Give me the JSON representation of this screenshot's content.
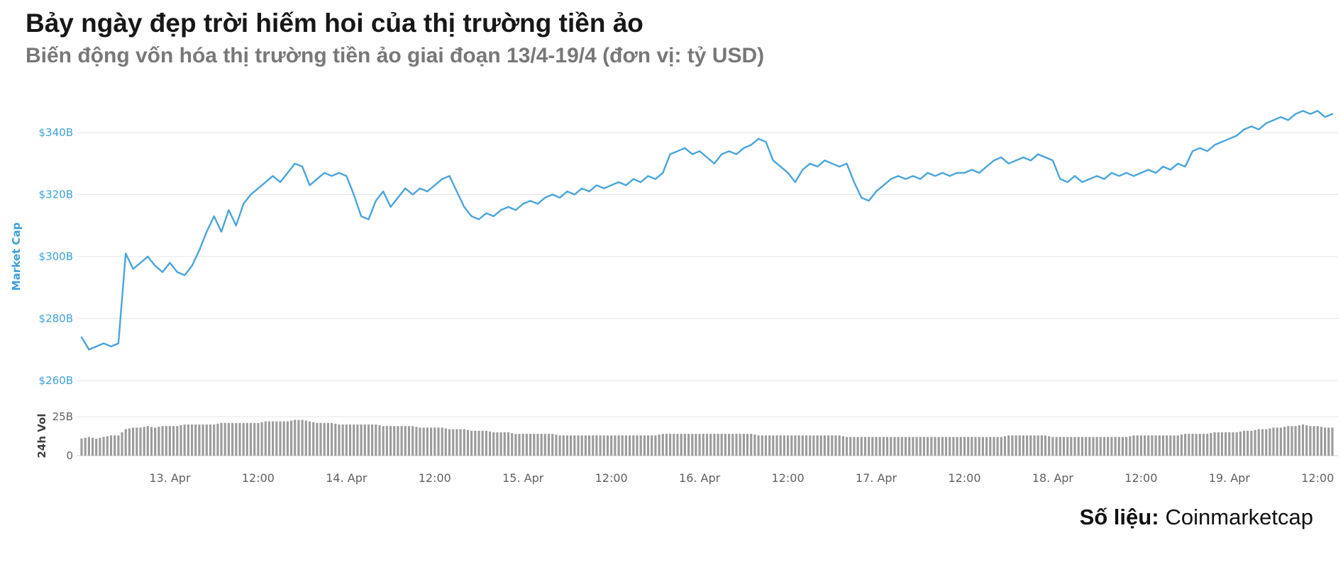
{
  "header": {
    "title": "Bảy ngày đẹp trời hiếm hoi của thị trường tiền ảo",
    "subtitle": "Biến động vốn hóa thị trường tiền ảo giai đoạn 13/4-19/4 (đơn vị: tỷ USD)"
  },
  "source": {
    "label": "Số liệu:",
    "value": "Coinmarketcap"
  },
  "chart_data": {
    "type": "line",
    "description": "Cryptocurrency total market cap (line, $B) with 24h volume (bars, $B), hourly from ~12 Apr 12:00 to ~19 Apr 14:00",
    "x": {
      "unit": "hours",
      "step_hours": 1,
      "tick_hours": [
        12,
        24,
        36,
        48,
        60,
        72,
        84,
        96,
        108,
        120,
        132,
        144,
        156,
        168
      ],
      "tick_labels": [
        "13. Apr",
        "12:00",
        "14. Apr",
        "12:00",
        "15. Apr",
        "12:00",
        "16. Apr",
        "12:00",
        "17. Apr",
        "12:00",
        "18. Apr",
        "12:00",
        "19. Apr",
        "12:00"
      ]
    },
    "panels": [
      {
        "type": "line",
        "name": "Market Cap",
        "axis_title": "Market Cap",
        "unit": "billion USD",
        "color": "#4aa4db",
        "label_color": "#3da0da",
        "ytick_values": [
          260,
          280,
          300,
          320,
          340
        ],
        "ytick_labels": [
          "$260B",
          "$280B",
          "$300B",
          "$320B",
          "$340B"
        ],
        "ylim": [
          258,
          352
        ],
        "values": [
          274,
          270,
          271,
          272,
          271,
          272,
          301,
          296,
          298,
          300,
          297,
          295,
          298,
          295,
          294,
          297,
          302,
          308,
          313,
          308,
          315,
          310,
          317,
          320,
          322,
          324,
          326,
          324,
          327,
          330,
          329,
          323,
          325,
          327,
          326,
          327,
          326,
          320,
          313,
          312,
          318,
          321,
          316,
          319,
          322,
          320,
          322,
          321,
          323,
          325,
          326,
          321,
          316,
          313,
          312,
          314,
          313,
          315,
          316,
          315,
          317,
          318,
          317,
          319,
          320,
          319,
          321,
          320,
          322,
          321,
          323,
          322,
          323,
          324,
          323,
          325,
          324,
          326,
          325,
          327,
          333,
          334,
          335,
          333,
          334,
          332,
          330,
          333,
          334,
          333,
          335,
          336,
          338,
          337,
          331,
          329,
          327,
          324,
          328,
          330,
          329,
          331,
          330,
          329,
          330,
          324,
          319,
          318,
          321,
          323,
          325,
          326,
          325,
          326,
          325,
          327,
          326,
          327,
          326,
          327,
          327,
          328,
          327,
          329,
          331,
          332,
          330,
          331,
          332,
          331,
          333,
          332,
          331,
          325,
          324,
          326,
          324,
          325,
          326,
          325,
          327,
          326,
          327,
          326,
          327,
          328,
          327,
          329,
          328,
          330,
          329,
          334,
          335,
          334,
          336,
          337,
          338,
          339,
          341,
          342,
          341,
          343,
          344,
          345,
          344,
          346,
          347,
          346,
          347,
          345,
          346
        ]
      },
      {
        "type": "bar",
        "name": "24h Vol",
        "axis_title": "24h Vol",
        "unit": "billion USD",
        "color": "#9c9c9c",
        "label_color": "#606060",
        "ytick_values": [
          0,
          25
        ],
        "ytick_labels": [
          "0",
          "25B"
        ],
        "ylim": [
          0,
          30
        ],
        "values": [
          11,
          12,
          11,
          12,
          13,
          13,
          17,
          18,
          18,
          19,
          18,
          19,
          19,
          19,
          20,
          20,
          20,
          20,
          20,
          21,
          21,
          21,
          21,
          21,
          21,
          22,
          22,
          22,
          22,
          23,
          23,
          22,
          21,
          21,
          21,
          20,
          20,
          20,
          20,
          20,
          20,
          19,
          19,
          19,
          19,
          19,
          18,
          18,
          18,
          18,
          17,
          17,
          17,
          16,
          16,
          16,
          15,
          15,
          15,
          14,
          14,
          14,
          14,
          14,
          14,
          13,
          13,
          13,
          13,
          13,
          13,
          13,
          13,
          13,
          13,
          13,
          13,
          13,
          13,
          14,
          14,
          14,
          14,
          14,
          14,
          14,
          14,
          14,
          14,
          14,
          14,
          14,
          13,
          13,
          13,
          13,
          13,
          13,
          13,
          13,
          13,
          13,
          13,
          13,
          12,
          12,
          12,
          12,
          12,
          12,
          12,
          12,
          12,
          12,
          12,
          12,
          12,
          12,
          12,
          12,
          12,
          12,
          12,
          12,
          12,
          12,
          13,
          13,
          13,
          13,
          13,
          13,
          12,
          12,
          12,
          12,
          12,
          12,
          12,
          12,
          12,
          12,
          12,
          13,
          13,
          13,
          13,
          13,
          13,
          13,
          14,
          14,
          14,
          14,
          15,
          15,
          15,
          15,
          16,
          16,
          17,
          17,
          18,
          18,
          19,
          19,
          20,
          19,
          19,
          18,
          18
        ]
      }
    ],
    "grid_color": "#e6e6e6",
    "axis_text_color": "#606060",
    "legend_position": "none",
    "grid": "horizontal-only"
  }
}
